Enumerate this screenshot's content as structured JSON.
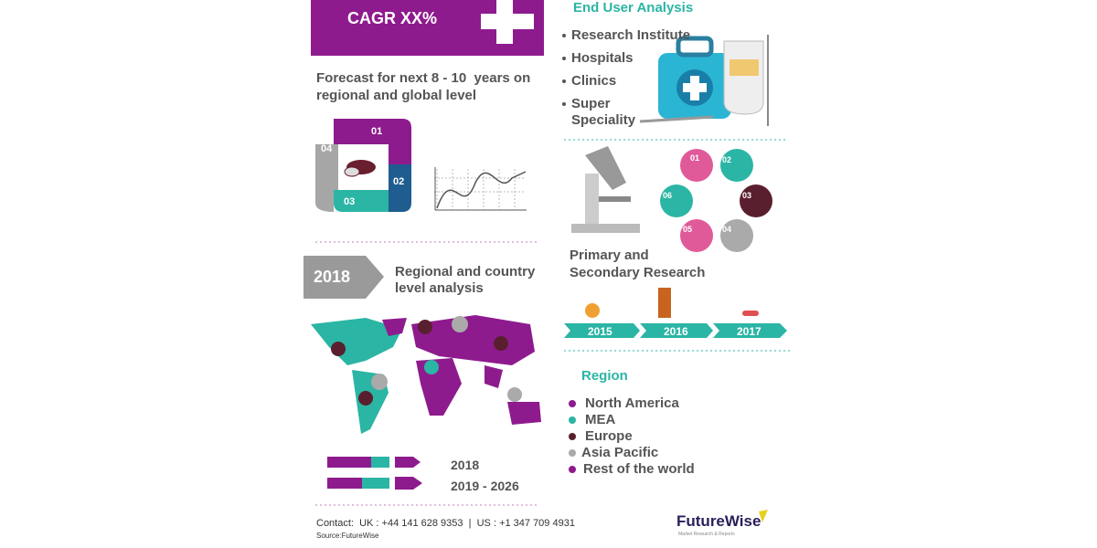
{
  "left": {
    "cagr": "CAGR XX%",
    "forecast": [
      "Forecast for next 8 - 10  years on",
      "regional and global level"
    ],
    "cycle": [
      "01",
      "02",
      "03",
      "04"
    ],
    "arrow_year": "2018",
    "regional": [
      "Regional and country",
      "level analysis"
    ],
    "people_years": [
      "2018",
      "2019 - 2026"
    ],
    "contact": "Contact:  UK : +44 141 628 9353  |  US : +1 347 709 4931",
    "source": "Source:FutureWise"
  },
  "right": {
    "end_user_title": "End User Analysis",
    "end_users": [
      "Research Institute",
      "Hospitals",
      "Clinics",
      "Super",
      "Speciality"
    ],
    "hexagons": [
      "01",
      "02",
      "03",
      "04",
      "05",
      "06"
    ],
    "research": [
      "Primary and",
      "Secondary Research"
    ],
    "timeline": [
      "2015",
      "2016",
      "2017"
    ],
    "region_title": "Region",
    "regions": [
      "North America",
      "MEA",
      "Europe",
      "Asia Pacific",
      "Rest of the world"
    ],
    "logo": "FutureWise",
    "tagline": "Market Research & Reports"
  }
}
